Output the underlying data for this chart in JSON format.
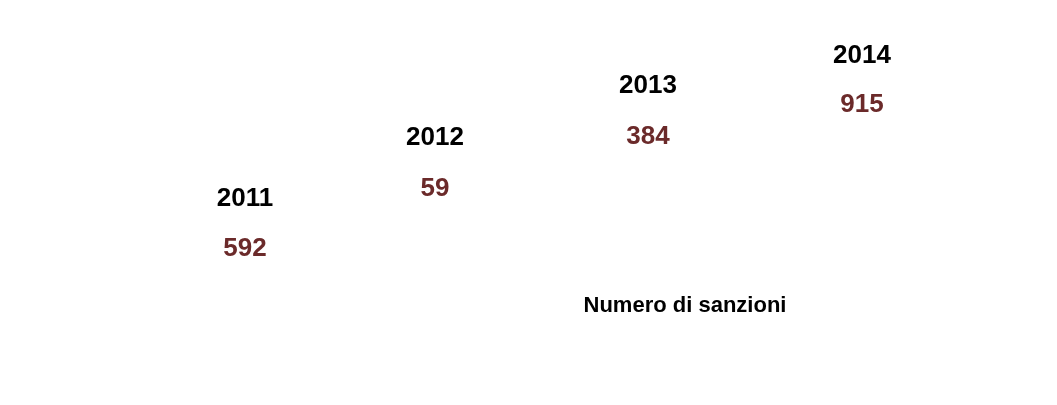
{
  "chart_data": {
    "type": "other",
    "categories": [
      "2011",
      "2012",
      "2013",
      "2014"
    ],
    "values": [
      592,
      59,
      384,
      915
    ],
    "color": "#6b2a2a",
    "data_labels": true,
    "annotations": [
      "Numero di sanzioni"
    ]
  }
}
